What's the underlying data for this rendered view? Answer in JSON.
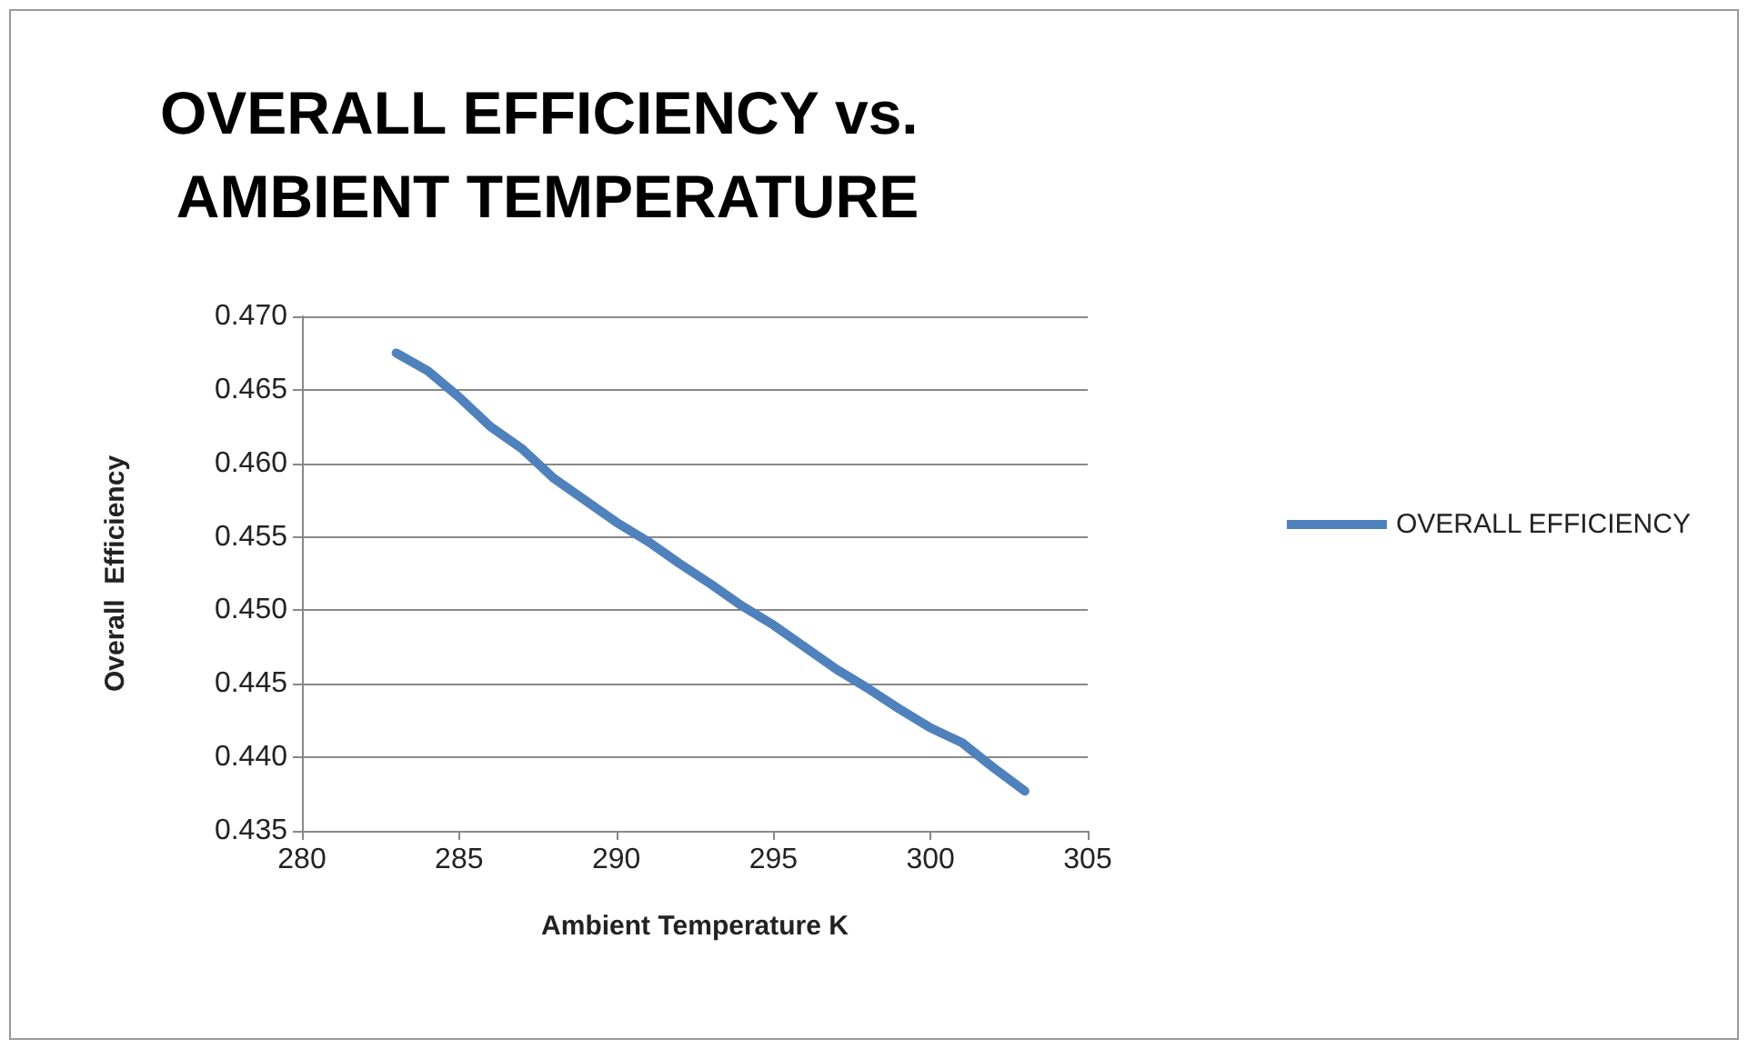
{
  "chart_data": {
    "type": "line",
    "title": "OVERALL EFFICIENCY vs. AMBIENT TEMPERATURE",
    "xlabel": "Ambient Temperature K",
    "ylabel": "Overall  Efficiency",
    "x": [
      283,
      284,
      285,
      286,
      287,
      288,
      289,
      290,
      291,
      292,
      293,
      294,
      295,
      296,
      297,
      298,
      299,
      300,
      301,
      302,
      303
    ],
    "series": [
      {
        "name": "OVERALL EFFICIENCY",
        "color": "#4f81bd",
        "values": [
          0.4675,
          0.4663,
          0.4645,
          0.4625,
          0.461,
          0.459,
          0.4575,
          0.456,
          0.4547,
          0.4532,
          0.4518,
          0.4503,
          0.449,
          0.4475,
          0.446,
          0.4447,
          0.4433,
          0.442,
          0.441,
          0.4393,
          0.4377
        ]
      }
    ],
    "xlim": [
      280,
      305
    ],
    "xticks": [
      280,
      285,
      290,
      295,
      300,
      305
    ],
    "ylim": [
      0.435,
      0.47
    ],
    "yticks": [
      {
        "value": 0.435,
        "label": "0.435"
      },
      {
        "value": 0.44,
        "label": "0.440"
      },
      {
        "value": 0.445,
        "label": "0.445"
      },
      {
        "value": 0.45,
        "label": "0.450"
      },
      {
        "value": 0.455,
        "label": "0.455"
      },
      {
        "value": 0.46,
        "label": "0.460"
      },
      {
        "value": 0.465,
        "label": "0.465"
      },
      {
        "value": 0.47,
        "label": "0.470"
      }
    ],
    "grid": "y",
    "legend": "right",
    "marker": "none",
    "line_style": "solid"
  }
}
